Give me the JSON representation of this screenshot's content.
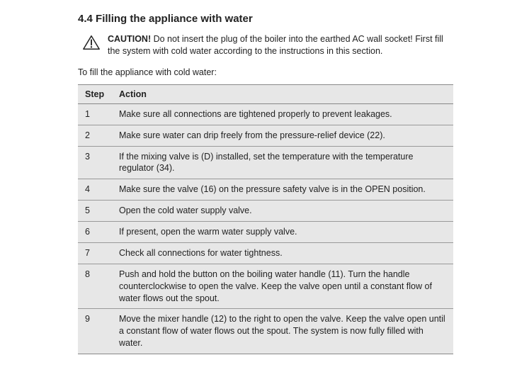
{
  "section": {
    "number": "4.4",
    "title": "Filling the appliance with water"
  },
  "caution": {
    "label": "CAUTION!",
    "text": "Do not insert the plug of the boiler into the earthed AC wall socket! First fill the system with cold water according to the instructions in this section."
  },
  "intro": "To fill the appliance with cold water:",
  "table": {
    "headers": {
      "step": "Step",
      "action": "Action"
    },
    "rows": [
      {
        "step": "1",
        "action": "Make sure all connections are tightened properly to prevent leakages."
      },
      {
        "step": "2",
        "action": "Make sure water can drip freely from the pressure-relief device (22)."
      },
      {
        "step": "3",
        "action": "If the mixing valve is (D) installed, set the temperature with the temperature regulator (34)."
      },
      {
        "step": "4",
        "action": "Make sure the valve (16) on the pressure safety valve is in the OPEN position."
      },
      {
        "step": "5",
        "action": "Open the cold water supply valve."
      },
      {
        "step": "6",
        "action": "If present, open the warm water supply valve."
      },
      {
        "step": "7",
        "action": "Check all connections for water tightness."
      },
      {
        "step": "8",
        "action": "Push and hold the button on the boiling water handle (11). Turn the handle counterclockwise to open the valve. Keep the valve open until a constant flow of water flows out the spout."
      },
      {
        "step": "9",
        "action": "Move the mixer handle (12) to the right to open the valve. Keep the valve open until a constant flow of water flows out the spout. The system is now fully filled with water."
      }
    ]
  },
  "styles": {
    "background_color": "#ffffff",
    "table_bg": "#e7e7e7",
    "border_color": "#888888",
    "text_color": "#222222",
    "heading_fontsize": 15,
    "body_fontsize": 12.5
  }
}
